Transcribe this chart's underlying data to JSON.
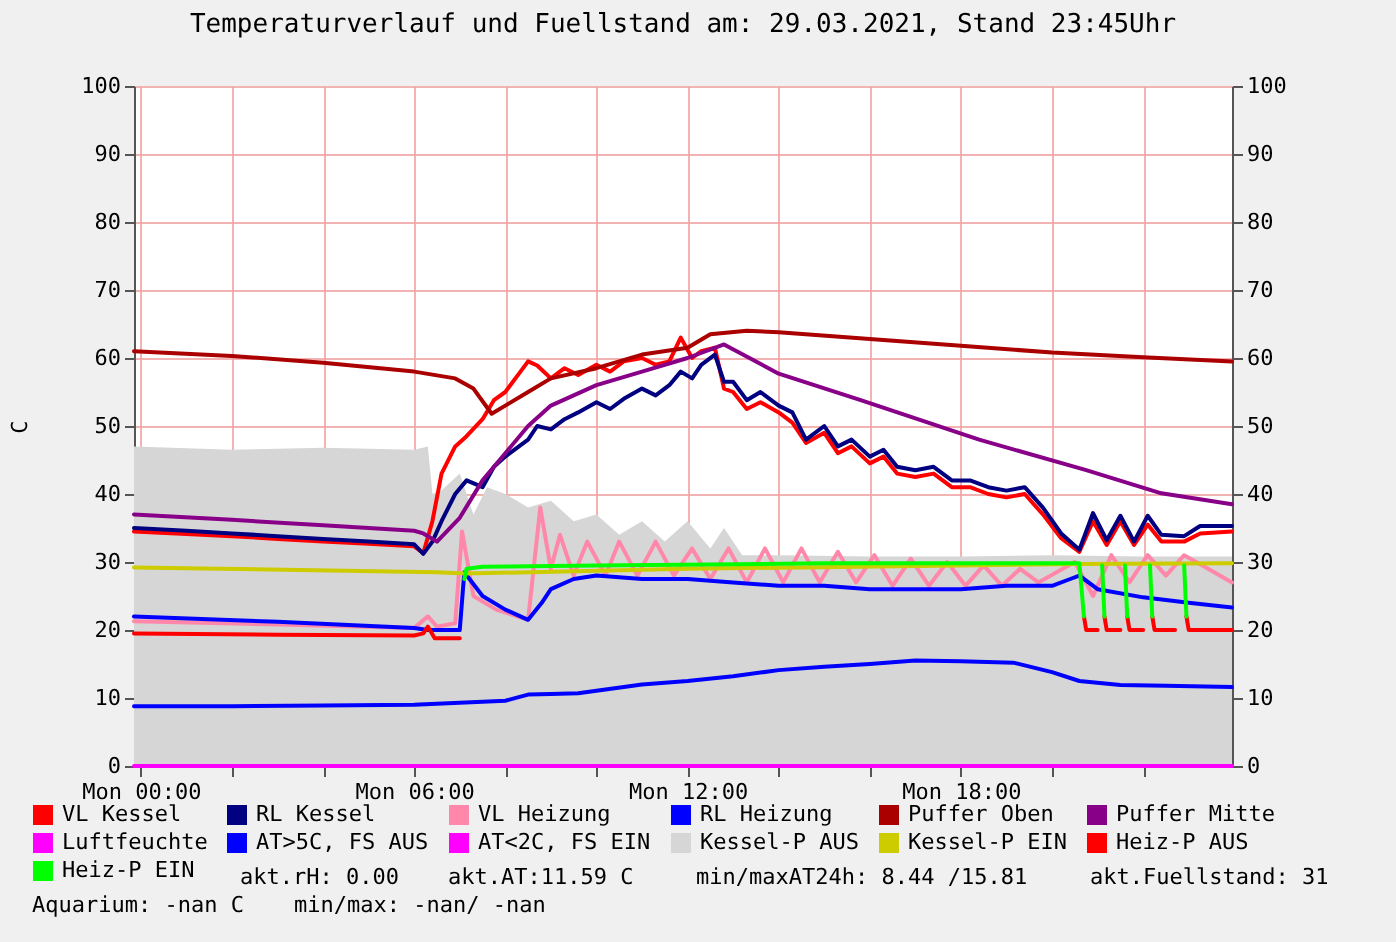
{
  "chart_data": {
    "type": "line",
    "title": "Temperaturverlauf und Fuellstand am: 29.03.2021, Stand 23:45Uhr",
    "ylabel": "C",
    "xlim": [
      "2021-03-28T23:51",
      "2021-03-29T23:57"
    ],
    "xticks": [
      {
        "value": "2021-03-29T00:00",
        "label": "Mon 00:00"
      },
      {
        "value": "2021-03-29T02:00",
        "label": null
      },
      {
        "value": "2021-03-29T04:00",
        "label": null
      },
      {
        "value": "2021-03-29T06:00",
        "label": "Mon 06:00"
      },
      {
        "value": "2021-03-29T08:00",
        "label": null
      },
      {
        "value": "2021-03-29T10:00",
        "label": null
      },
      {
        "value": "2021-03-29T12:00",
        "label": "Mon 12:00"
      },
      {
        "value": "2021-03-29T14:00",
        "label": null
      },
      {
        "value": "2021-03-29T16:00",
        "label": null
      },
      {
        "value": "2021-03-29T18:00",
        "label": "Mon 18:00"
      },
      {
        "value": "2021-03-29T20:00",
        "label": null
      },
      {
        "value": "2021-03-29T22:00",
        "label": null
      }
    ],
    "ylim": [
      0,
      100
    ],
    "yticks": [
      0,
      10,
      20,
      30,
      40,
      50,
      60,
      70,
      80,
      90,
      100
    ],
    "y2lim": [
      0,
      100
    ],
    "y2ticks": [
      0,
      10,
      20,
      30,
      40,
      50,
      60,
      70,
      80,
      90,
      100
    ],
    "grid": true,
    "legend": "bottom",
    "series": [
      {
        "name": "VL Kessel",
        "color": "#ff0000",
        "x": [
          "2021-03-28T23:51",
          "2021-03-29T01:00",
          "2021-03-29T02:00",
          "2021-03-29T03:00",
          "2021-03-29T04:00",
          "2021-03-29T05:00",
          "2021-03-29T06:00",
          "2021-03-29T06:12",
          "2021-03-29T06:24",
          "2021-03-29T06:36",
          "2021-03-29T06:54",
          "2021-03-29T07:09",
          "2021-03-29T07:30",
          "2021-03-29T07:45",
          "2021-03-29T08:00",
          "2021-03-29T08:18",
          "2021-03-29T08:30",
          "2021-03-29T08:42",
          "2021-03-29T09:00",
          "2021-03-29T09:18",
          "2021-03-29T09:36",
          "2021-03-29T10:00",
          "2021-03-29T10:18",
          "2021-03-29T10:36",
          "2021-03-29T11:00",
          "2021-03-29T11:18",
          "2021-03-29T11:36",
          "2021-03-29T11:51",
          "2021-03-29T12:06",
          "2021-03-29T12:18",
          "2021-03-29T12:36",
          "2021-03-29T12:48",
          "2021-03-29T13:00",
          "2021-03-29T13:18",
          "2021-03-29T13:36",
          "2021-03-29T14:00",
          "2021-03-29T14:18",
          "2021-03-29T14:36",
          "2021-03-29T15:00",
          "2021-03-29T15:18",
          "2021-03-29T15:36",
          "2021-03-29T16:00",
          "2021-03-29T16:18",
          "2021-03-29T16:36",
          "2021-03-29T17:00",
          "2021-03-29T17:24",
          "2021-03-29T17:48",
          "2021-03-29T18:12",
          "2021-03-29T18:36",
          "2021-03-29T19:00",
          "2021-03-29T19:24",
          "2021-03-29T19:48",
          "2021-03-29T20:12",
          "2021-03-29T20:36",
          "2021-03-29T20:54",
          "2021-03-29T21:12",
          "2021-03-29T21:30",
          "2021-03-29T21:48",
          "2021-03-29T22:06",
          "2021-03-29T22:24",
          "2021-03-29T22:54",
          "2021-03-29T23:15",
          "2021-03-29T23:57"
        ],
        "values": [
          34.5,
          34.1,
          33.8,
          33.4,
          33,
          32.7,
          32.3,
          31.3,
          36,
          43,
          47,
          48.5,
          51,
          53.8,
          55,
          57.7,
          59.5,
          58.9,
          57,
          58.5,
          57.5,
          59,
          58,
          59.5,
          60,
          59,
          59.5,
          63,
          60,
          61,
          61.5,
          55.5,
          55,
          52.5,
          53.5,
          52,
          50.5,
          47.5,
          49,
          46,
          47,
          44.5,
          45.5,
          43,
          42.5,
          43,
          41,
          41,
          40,
          39.5,
          40,
          37,
          33.5,
          31.5,
          36,
          32.5,
          36,
          32.5,
          35.5,
          33,
          33,
          34.2,
          34.5
        ]
      },
      {
        "name": "RL Kessel",
        "color": "#000080",
        "x": [
          "2021-03-28T23:51",
          "2021-03-29T01:00",
          "2021-03-29T02:00",
          "2021-03-29T03:00",
          "2021-03-29T04:00",
          "2021-03-29T05:00",
          "2021-03-29T06:00",
          "2021-03-29T06:12",
          "2021-03-29T06:24",
          "2021-03-29T06:36",
          "2021-03-29T06:54",
          "2021-03-29T07:09",
          "2021-03-29T07:30",
          "2021-03-29T07:45",
          "2021-03-29T08:00",
          "2021-03-29T08:18",
          "2021-03-29T08:30",
          "2021-03-29T08:42",
          "2021-03-29T09:00",
          "2021-03-29T09:18",
          "2021-03-29T09:36",
          "2021-03-29T10:00",
          "2021-03-29T10:18",
          "2021-03-29T10:36",
          "2021-03-29T11:00",
          "2021-03-29T11:18",
          "2021-03-29T11:36",
          "2021-03-29T11:51",
          "2021-03-29T12:06",
          "2021-03-29T12:18",
          "2021-03-29T12:36",
          "2021-03-29T12:48",
          "2021-03-29T13:00",
          "2021-03-29T13:18",
          "2021-03-29T13:36",
          "2021-03-29T14:00",
          "2021-03-29T14:18",
          "2021-03-29T14:36",
          "2021-03-29T15:00",
          "2021-03-29T15:18",
          "2021-03-29T15:36",
          "2021-03-29T16:00",
          "2021-03-29T16:18",
          "2021-03-29T16:36",
          "2021-03-29T17:00",
          "2021-03-29T17:24",
          "2021-03-29T17:48",
          "2021-03-29T18:12",
          "2021-03-29T18:36",
          "2021-03-29T19:00",
          "2021-03-29T19:24",
          "2021-03-29T19:48",
          "2021-03-29T20:12",
          "2021-03-29T20:36",
          "2021-03-29T20:54",
          "2021-03-29T21:12",
          "2021-03-29T21:30",
          "2021-03-29T21:48",
          "2021-03-29T22:06",
          "2021-03-29T22:24",
          "2021-03-29T22:54",
          "2021-03-29T23:15",
          "2021-03-29T23:57"
        ],
        "values": [
          35,
          34.6,
          34.2,
          33.8,
          33.4,
          33,
          32.6,
          31.2,
          33,
          36,
          40,
          42,
          41,
          44,
          45.5,
          47,
          48,
          50,
          49.5,
          51,
          52,
          53.5,
          52.5,
          54,
          55.5,
          54.5,
          56,
          58,
          57,
          59,
          60.5,
          56.5,
          56.5,
          53.8,
          55,
          53,
          52,
          48,
          50,
          47,
          48,
          45.5,
          46.5,
          44,
          43.5,
          44,
          42,
          42,
          41,
          40.5,
          41,
          38,
          34.2,
          31.8,
          37.2,
          33.2,
          36.8,
          33,
          36.8,
          34,
          33.8,
          35.3,
          35.3
        ]
      },
      {
        "name": "VL Heizung",
        "color": "#ff88aa",
        "x": [
          "2021-03-28T23:51",
          "2021-03-29T03:00",
          "2021-03-29T06:00",
          "2021-03-29T06:18",
          "2021-03-29T06:30",
          "2021-03-29T06:54",
          "2021-03-29T07:03",
          "2021-03-29T07:18",
          "2021-03-29T07:48",
          "2021-03-29T08:30",
          "2021-03-29T08:46",
          "2021-03-29T09:00",
          "2021-03-29T09:12",
          "2021-03-29T09:30",
          "2021-03-29T09:48",
          "2021-03-29T10:12",
          "2021-03-29T10:30",
          "2021-03-29T10:54",
          "2021-03-29T11:18",
          "2021-03-29T11:42",
          "2021-03-29T12:06",
          "2021-03-29T12:30",
          "2021-03-29T12:54",
          "2021-03-29T13:18",
          "2021-03-29T13:42",
          "2021-03-29T14:06",
          "2021-03-29T14:30",
          "2021-03-29T14:54",
          "2021-03-29T15:18",
          "2021-03-29T15:42",
          "2021-03-29T16:06",
          "2021-03-29T16:30",
          "2021-03-29T16:54",
          "2021-03-29T17:18",
          "2021-03-29T17:42",
          "2021-03-29T18:06",
          "2021-03-29T18:30",
          "2021-03-29T18:54",
          "2021-03-29T19:18",
          "2021-03-29T19:42",
          "2021-03-29T20:06",
          "2021-03-29T20:30",
          "2021-03-29T20:54",
          "2021-03-29T21:18",
          "2021-03-29T21:42",
          "2021-03-29T22:06",
          "2021-03-29T22:30",
          "2021-03-29T22:54",
          "2021-03-29T23:18",
          "2021-03-29T23:57"
        ],
        "values": [
          21.3,
          20.8,
          20.3,
          22,
          20.5,
          21,
          34.5,
          25,
          23,
          21.5,
          38,
          29,
          34,
          28,
          33,
          28,
          33,
          28,
          33,
          28,
          32,
          27.5,
          32,
          27,
          32,
          27,
          32,
          27,
          31.5,
          27,
          31,
          26.5,
          30.5,
          26.5,
          30,
          26.5,
          29.5,
          26.5,
          29,
          27,
          28.5,
          30,
          25,
          31,
          27,
          31,
          28,
          31,
          29.5,
          27
        ]
      },
      {
        "name": "RL Heizung",
        "color": "#0000ff",
        "x": [
          "2021-03-28T23:51",
          "2021-03-29T03:00",
          "2021-03-29T06:00",
          "2021-03-29T06:18",
          "2021-03-29T07:00",
          "2021-03-29T07:06",
          "2021-03-29T07:30",
          "2021-03-29T08:00",
          "2021-03-29T08:30",
          "2021-03-29T08:48",
          "2021-03-29T09:00",
          "2021-03-29T09:30",
          "2021-03-29T10:00",
          "2021-03-29T11:00",
          "2021-03-29T12:00",
          "2021-03-29T13:00",
          "2021-03-29T14:00",
          "2021-03-29T15:00",
          "2021-03-29T16:00",
          "2021-03-29T17:00",
          "2021-03-29T18:00",
          "2021-03-29T19:00",
          "2021-03-29T20:00",
          "2021-03-29T20:24",
          "2021-03-29T20:36",
          "2021-03-29T21:00",
          "2021-03-29T22:00",
          "2021-03-29T23:00",
          "2021-03-29T23:57"
        ],
        "values": [
          22,
          21.2,
          20.3,
          20,
          20,
          28.5,
          25,
          23,
          21.5,
          24,
          26,
          27.5,
          28,
          27.5,
          27.5,
          27,
          26.5,
          26.5,
          26,
          26,
          26,
          26.5,
          26.5,
          27.5,
          28,
          26,
          24.8,
          24,
          23.3
        ]
      },
      {
        "name": "Puffer Oben",
        "color": "#aa0000",
        "x": [
          "2021-03-28T23:51",
          "2021-03-29T02:00",
          "2021-03-29T04:00",
          "2021-03-29T06:00",
          "2021-03-29T06:54",
          "2021-03-29T07:18",
          "2021-03-29T07:42",
          "2021-03-29T08:00",
          "2021-03-29T08:30",
          "2021-03-29T09:00",
          "2021-03-29T10:00",
          "2021-03-29T11:00",
          "2021-03-29T12:00",
          "2021-03-29T12:30",
          "2021-03-29T13:18",
          "2021-03-29T14:00",
          "2021-03-29T16:00",
          "2021-03-29T18:00",
          "2021-03-29T20:00",
          "2021-03-29T22:00",
          "2021-03-29T23:57"
        ],
        "values": [
          61,
          60.3,
          59.3,
          58,
          57,
          55.5,
          51.8,
          53,
          55,
          57,
          58.5,
          60.5,
          61.5,
          63.5,
          64,
          63.8,
          62.8,
          61.8,
          60.8,
          60.1,
          59.5
        ]
      },
      {
        "name": "Puffer Mitte",
        "color": "#880088",
        "x": [
          "2021-03-28T23:51",
          "2021-03-29T02:00",
          "2021-03-29T04:00",
          "2021-03-29T06:00",
          "2021-03-29T06:12",
          "2021-03-29T06:30",
          "2021-03-29T07:00",
          "2021-03-29T07:30",
          "2021-03-29T08:00",
          "2021-03-29T08:30",
          "2021-03-29T09:00",
          "2021-03-29T10:00",
          "2021-03-29T11:00",
          "2021-03-29T12:00",
          "2021-03-29T12:48",
          "2021-03-29T14:00",
          "2021-03-29T15:48",
          "2021-03-29T18:24",
          "2021-03-29T20:45",
          "2021-03-29T22:24",
          "2021-03-29T23:57"
        ],
        "values": [
          37,
          36.2,
          35.4,
          34.6,
          34.2,
          33,
          36.5,
          42,
          46,
          50,
          53,
          56,
          58,
          60,
          62,
          57.7,
          53.8,
          48,
          43.5,
          40.1,
          38.5
        ]
      },
      {
        "name": "Luftfeuchte",
        "color": "#ff00ff",
        "x": [
          "2021-03-28T23:51",
          "2021-03-29T23:57"
        ],
        "values": [
          0,
          0
        ]
      },
      {
        "name": "AT>5C, FS AUS",
        "color": "#0000ff",
        "x": [
          "2021-03-28T23:51",
          "2021-03-29T02:00",
          "2021-03-29T04:00",
          "2021-03-29T06:00",
          "2021-03-29T07:00",
          "2021-03-29T08:00",
          "2021-03-29T08:30",
          "2021-03-29T09:00",
          "2021-03-29T09:36",
          "2021-03-29T11:00",
          "2021-03-29T12:00",
          "2021-03-29T13:00",
          "2021-03-29T14:00",
          "2021-03-29T15:00",
          "2021-03-29T16:00",
          "2021-03-29T17:00",
          "2021-03-29T18:00",
          "2021-03-29T19:09",
          "2021-03-29T20:00",
          "2021-03-29T20:36",
          "2021-03-29T21:30",
          "2021-03-29T22:30",
          "2021-03-29T23:57"
        ],
        "values": [
          8.8,
          8.8,
          8.9,
          9,
          9.3,
          9.6,
          10.5,
          10.6,
          10.7,
          12,
          12.5,
          13.2,
          14.1,
          14.6,
          15,
          15.5,
          15.4,
          15.2,
          13.8,
          12.5,
          11.9,
          11.8,
          11.6
        ]
      },
      {
        "name": "AT<2C, FS EIN",
        "color": "#ff00ff"
      },
      {
        "name": "Kessel-P AUS",
        "type": "area",
        "color": "#d6d6d6",
        "x": [
          "2021-03-28T23:51",
          "2021-03-29T02:00",
          "2021-03-29T04:00",
          "2021-03-29T06:00",
          "2021-03-29T06:18",
          "2021-03-29T06:24",
          "2021-03-29T06:36",
          "2021-03-29T07:00",
          "2021-03-29T07:18",
          "2021-03-29T07:36",
          "2021-03-29T08:00",
          "2021-03-29T08:30",
          "2021-03-29T09:00",
          "2021-03-29T09:30",
          "2021-03-29T10:00",
          "2021-03-29T10:30",
          "2021-03-29T11:00",
          "2021-03-29T11:30",
          "2021-03-29T12:00",
          "2021-03-29T12:30",
          "2021-03-29T12:48",
          "2021-03-29T13:12",
          "2021-03-29T14:00",
          "2021-03-29T16:00",
          "2021-03-29T18:00",
          "2021-03-29T20:00",
          "2021-03-29T22:00",
          "2021-03-29T23:57"
        ],
        "values": [
          47,
          46.5,
          46.8,
          46.5,
          47,
          40,
          40.5,
          43,
          37,
          41,
          40,
          38,
          39,
          36,
          37,
          34,
          36,
          33,
          36,
          32,
          35,
          31,
          31,
          30.8,
          30.8,
          31,
          30.8,
          30.8
        ]
      },
      {
        "name": "Kessel-P EIN",
        "color": "#cccc00",
        "x": [
          "2021-03-28T23:51",
          "2021-03-29T06:30",
          "2021-03-29T07:06",
          "2021-03-29T12:00",
          "2021-03-29T20:30",
          "2021-03-29T23:57"
        ],
        "values": [
          29.2,
          28.5,
          28.3,
          29,
          29.7,
          29.8
        ]
      },
      {
        "name": "Heiz-P AUS",
        "color": "#ff0000",
        "x": [
          "2021-03-28T23:51",
          "2021-03-29T03:00",
          "2021-03-29T06:00",
          "2021-03-29T06:12",
          "2021-03-29T06:18",
          "2021-03-29T06:27",
          "2021-03-29T07:00",
          "2021-03-29T07:03",
          "2021-03-29T20:42",
          "2021-03-29T20:45",
          "2021-03-29T21:00",
          "2021-03-29T21:03",
          "2021-03-29T21:09",
          "2021-03-29T21:12",
          "2021-03-29T21:30",
          "2021-03-29T21:33",
          "2021-03-29T21:39",
          "2021-03-29T21:42",
          "2021-03-29T22:00",
          "2021-03-29T22:03",
          "2021-03-29T22:12",
          "2021-03-29T22:15",
          "2021-03-29T22:42",
          "2021-03-29T22:45",
          "2021-03-29T22:57",
          "2021-03-29T23:00",
          "2021-03-29T23:57"
        ],
        "values": [
          19.5,
          19.3,
          19.2,
          19.5,
          20.5,
          18.8,
          18.8,
          null,
          22,
          20,
          20,
          null,
          22,
          20,
          20,
          null,
          22,
          20,
          20,
          null,
          22,
          20,
          20,
          null,
          22,
          20,
          20
        ]
      },
      {
        "name": "Heiz-P EIN",
        "color": "#00ff00",
        "x": [
          "2021-03-29T07:06",
          "2021-03-29T07:09",
          "2021-03-29T07:30",
          "2021-03-29T10:00",
          "2021-03-29T15:00",
          "2021-03-29T20:36",
          "2021-03-29T20:42",
          "2021-03-29T20:48",
          "2021-03-29T21:06",
          "2021-03-29T21:09",
          "2021-03-29T21:12",
          "2021-03-29T21:36",
          "2021-03-29T21:39",
          "2021-03-29T21:42",
          "2021-03-29T22:09",
          "2021-03-29T22:12",
          "2021-03-29T22:15",
          "2021-03-29T22:54",
          "2021-03-29T22:57"
        ],
        "values": [
          27.5,
          29,
          29.3,
          29.5,
          29.8,
          29.8,
          22,
          null,
          29.5,
          22,
          null,
          29.5,
          22,
          null,
          29.5,
          22,
          null,
          29.5,
          22
        ]
      }
    ],
    "annotations": [
      "akt.rH: 0.00",
      "akt.AT:11.59 C",
      "min/maxAT24h: 8.44 /15.81",
      "akt.Fuellstand:   31",
      "Aquarium: -nan C",
      "min/max: -nan/ -nan"
    ]
  }
}
